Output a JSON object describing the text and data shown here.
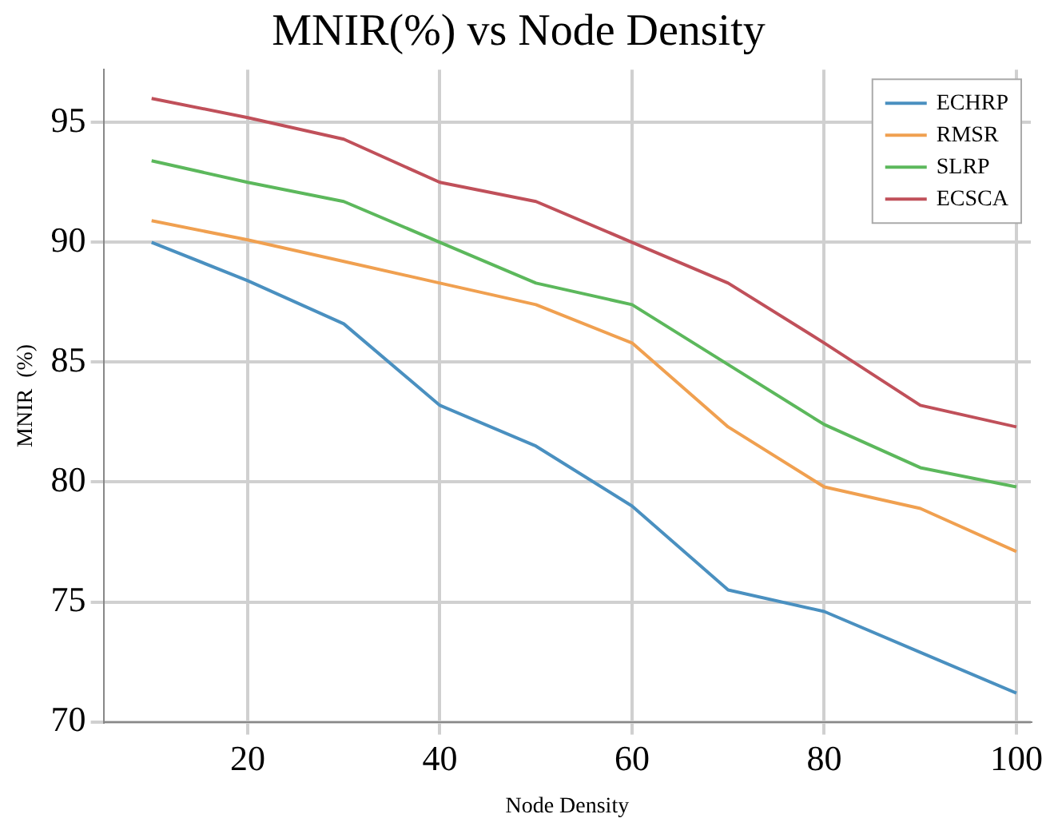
{
  "chart_data": {
    "type": "line",
    "title": "MNIR(%) vs Node Density",
    "xlabel": "Node Density",
    "ylabel": "MNIR  (%)",
    "x": [
      10,
      20,
      30,
      40,
      50,
      60,
      70,
      80,
      90,
      100
    ],
    "xlim": [
      5,
      101.5
    ],
    "xticks": [
      20,
      40,
      60,
      80,
      100
    ],
    "ylim": [
      70,
      97.2
    ],
    "yticks": [
      70,
      75,
      80,
      85,
      90,
      95
    ],
    "grid": true,
    "legend": "top right",
    "marker": "none",
    "line_style": "solid",
    "series": [
      {
        "name": "ECHRP",
        "color": "#4a90c0",
        "values": [
          90.0,
          88.4,
          86.6,
          83.2,
          81.5,
          79.0,
          75.5,
          74.6,
          72.9,
          71.2
        ]
      },
      {
        "name": "RMSR",
        "color": "#f0a050",
        "values": [
          90.9,
          90.1,
          89.2,
          88.3,
          87.4,
          85.8,
          82.3,
          79.8,
          78.9,
          77.1
        ]
      },
      {
        "name": "SLRP",
        "color": "#5cb85c",
        "values": [
          93.4,
          92.5,
          91.7,
          90.0,
          88.3,
          87.4,
          84.9,
          82.4,
          80.6,
          79.8
        ]
      },
      {
        "name": "ECSCA",
        "color": "#c0505a",
        "values": [
          96.0,
          95.2,
          94.3,
          92.5,
          91.7,
          90.0,
          88.3,
          85.8,
          83.2,
          82.3
        ]
      }
    ]
  }
}
